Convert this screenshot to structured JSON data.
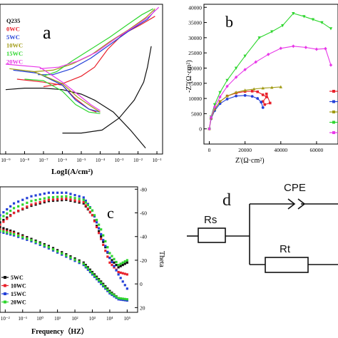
{
  "colors": {
    "black": "#111111",
    "red": "#e8202a",
    "blue": "#2440d8",
    "olive": "#a09a12",
    "green": "#2ed62e",
    "magenta": "#e838e8"
  },
  "chart_data": [
    {
      "panel": "a",
      "type": "line",
      "xlabel": "LogI(A/cm²)",
      "ylabel": "",
      "x_ticks": [
        "10⁻⁹",
        "10⁻⁸",
        "10⁻⁷",
        "10⁻⁶",
        "10⁻⁵",
        "10⁻⁴",
        "10⁻³",
        "10⁻²",
        "10⁻¹"
      ],
      "xlim": [
        -9.3,
        -0.7
      ],
      "legend": [
        "Q235",
        "0WC",
        "5WC",
        "10WC",
        "15WC",
        "20WC"
      ],
      "legend_position": "top-left",
      "series": [
        {
          "name": "Q235",
          "x": [
            -6.0,
            -5.0,
            -3.9,
            -3.0,
            -2.2,
            -1.7,
            -1.5,
            -1.3
          ],
          "y": [
            0.14,
            0.14,
            0.16,
            0.24,
            0.36,
            0.48,
            0.58,
            0.72
          ],
          "x2": [
            -9.0,
            -8.0,
            -7.0,
            -6.0,
            -5.0,
            -4.3,
            -3.3,
            -2.4,
            -1.6
          ],
          "y2": [
            0.43,
            0.44,
            0.44,
            0.43,
            0.4,
            0.36,
            0.28,
            0.16,
            0.04
          ]
        },
        {
          "name": "0WC",
          "x": [
            -7.0,
            -6.0,
            -5.0,
            -4.3,
            -3.6,
            -2.8,
            -1.9,
            -1.1
          ],
          "y": [
            0.45,
            0.47,
            0.52,
            0.58,
            0.7,
            0.8,
            0.86,
            0.92
          ],
          "x2": [
            -8.4,
            -7.0,
            -6.0,
            -5.4,
            -4.6,
            -4.2
          ],
          "y2": [
            0.5,
            0.48,
            0.46,
            0.38,
            0.3,
            0.28
          ]
        },
        {
          "name": "5WC",
          "x": [
            -7.3,
            -6.5,
            -5.5,
            -4.5,
            -3.5,
            -2.5,
            -1.5,
            -1.1
          ],
          "y": [
            0.53,
            0.53,
            0.57,
            0.64,
            0.73,
            0.82,
            0.9,
            0.96
          ],
          "x2": [
            -8.6,
            -7.3,
            -6.0,
            -5.3,
            -4.6,
            -4.0
          ],
          "y2": [
            0.56,
            0.54,
            0.46,
            0.36,
            0.3,
            0.28
          ]
        },
        {
          "name": "10WC",
          "x": [
            -7.5,
            -6.5,
            -5.5,
            -4.5,
            -3.5,
            -2.5,
            -1.6,
            -1.1
          ],
          "y": [
            0.55,
            0.56,
            0.6,
            0.66,
            0.75,
            0.83,
            0.91,
            0.97
          ],
          "x2": [
            -8.8,
            -7.5,
            -6.0,
            -5.2,
            -4.5,
            -4.0
          ],
          "y2": [
            0.57,
            0.55,
            0.47,
            0.38,
            0.32,
            0.28
          ]
        },
        {
          "name": "15WC",
          "x": [
            -7.0,
            -6.3,
            -5.5,
            -4.5,
            -3.5,
            -2.6,
            -1.8,
            -1.2
          ],
          "y": [
            0.52,
            0.55,
            0.62,
            0.7,
            0.78,
            0.86,
            0.93,
            0.97
          ],
          "x2": [
            -8.0,
            -7.0,
            -6.0,
            -5.3,
            -4.6,
            -4.0
          ],
          "y2": [
            0.5,
            0.49,
            0.42,
            0.33,
            0.28,
            0.27
          ]
        },
        {
          "name": "20WC",
          "x": [
            -7.2,
            -6.2,
            -5.2,
            -4.2,
            -3.2,
            -2.2,
            -1.4,
            -0.9
          ],
          "y": [
            0.57,
            0.58,
            0.62,
            0.68,
            0.77,
            0.85,
            0.92,
            0.98
          ],
          "x2": [
            -9.0,
            -7.2,
            -6.0,
            -5.2,
            -4.5,
            -4.0
          ],
          "y2": [
            0.6,
            0.58,
            0.48,
            0.4,
            0.33,
            0.29
          ]
        }
      ]
    },
    {
      "panel": "b",
      "type": "scatter",
      "xlabel": "Z'(Ω·cm²)",
      "ylabel": "-Z''(Ω·cm²)",
      "x_ticks": [
        0,
        20000,
        40000,
        60000
      ],
      "y_ticks": [
        0,
        5000,
        10000,
        15000,
        20000,
        25000,
        30000,
        35000,
        40000
      ],
      "xlim": [
        -3000,
        72000
      ],
      "ylim": [
        -5000,
        41000
      ],
      "series": [
        {
          "color_key": "red",
          "x": [
            0,
            1000,
            3000,
            6000,
            10000,
            15000,
            20000,
            24000,
            27000,
            30000,
            32000,
            30000,
            31000,
            34000,
            32000
          ],
          "y": [
            0,
            3500,
            6500,
            9000,
            10800,
            11800,
            12300,
            12400,
            12200,
            11200,
            10500,
            9000,
            8000,
            8500,
            11500
          ]
        },
        {
          "color_key": "blue",
          "x": [
            0,
            1000,
            3000,
            6000,
            10000,
            15000,
            20000,
            24000,
            27000,
            29000,
            30000
          ],
          "y": [
            0,
            3300,
            6000,
            8300,
            9800,
            10800,
            11000,
            10700,
            10000,
            8800,
            7000
          ]
        },
        {
          "color_key": "olive",
          "x": [
            0,
            1000,
            3000,
            6000,
            10000,
            15000,
            20000,
            25000,
            30000,
            35000,
            40000
          ],
          "y": [
            0,
            3500,
            6500,
            9000,
            10800,
            12000,
            12700,
            13100,
            13400,
            13600,
            13800
          ]
        },
        {
          "color_key": "green",
          "x": [
            0,
            1000,
            3000,
            6000,
            10000,
            15000,
            20000,
            28000,
            35000,
            41000,
            47000,
            53000,
            58000,
            63000,
            68000
          ],
          "y": [
            0,
            4000,
            8000,
            12000,
            16000,
            20000,
            24000,
            30000,
            32000,
            34000,
            38000,
            37000,
            36000,
            35000,
            33000
          ]
        },
        {
          "color_key": "magenta",
          "x": [
            0,
            1000,
            3000,
            6000,
            10000,
            15000,
            20000,
            26000,
            33000,
            40000,
            47000,
            54000,
            60000,
            65000,
            68000
          ],
          "y": [
            0,
            3800,
            7200,
            10500,
            14000,
            17000,
            19500,
            22000,
            24500,
            26500,
            27200,
            26800,
            26200,
            26400,
            21000
          ]
        }
      ]
    },
    {
      "panel": "c",
      "type": "scatter",
      "xlabel": "Frequency（HZ）",
      "ylabel_right": "Theta",
      "x_ticks": [
        "10⁻²",
        "10⁻¹",
        "10⁰",
        "10¹",
        "10²",
        "10³",
        "10⁴",
        "10⁵"
      ],
      "y_right_ticks": [
        -80,
        -60,
        -40,
        -20,
        0,
        20
      ],
      "xlim": [
        -2.3,
        5.6
      ],
      "ylim_right": [
        -82,
        24
      ],
      "legend": [
        "5WC",
        "10WC",
        "15WC",
        "20WC"
      ],
      "legend_position": "bottom-left",
      "series": [
        {
          "name": "5WC",
          "color_key": "black",
          "x": [
            -2.3,
            -1.5,
            -0.5,
            0.5,
            1.5,
            2.5,
            3.0,
            3.5,
            4.0,
            4.5,
            5.0
          ],
          "y_phase": [
            -52,
            -60,
            -66,
            -70,
            -71,
            -68,
            -58,
            -40,
            -22,
            -14,
            -18
          ],
          "y_mod": [
            -48,
            -44,
            -38,
            -32,
            -25,
            -18,
            -10,
            -2,
            6,
            12,
            14
          ]
        },
        {
          "name": "10WC",
          "color_key": "red",
          "x": [
            -2.3,
            -1.5,
            -0.5,
            0.5,
            1.5,
            2.5,
            3.0,
            3.5,
            4.0,
            4.5,
            5.0
          ],
          "y_phase": [
            -50,
            -60,
            -67,
            -71,
            -72,
            -69,
            -58,
            -38,
            -18,
            -10,
            -8
          ],
          "y_mod": [
            -46,
            -43,
            -37,
            -31,
            -24,
            -17,
            -9,
            -1,
            7,
            12,
            14
          ]
        },
        {
          "name": "15WC",
          "color_key": "blue",
          "x": [
            -2.3,
            -1.5,
            -0.5,
            0.5,
            1.5,
            2.5,
            3.0,
            3.5,
            4.0,
            4.5,
            5.0
          ],
          "y_phase": [
            -58,
            -68,
            -74,
            -77,
            -77,
            -73,
            -62,
            -42,
            -22,
            -8,
            4
          ],
          "y_mod": [
            -44,
            -41,
            -36,
            -30,
            -23,
            -16,
            -8,
            0,
            8,
            13,
            14
          ]
        },
        {
          "name": "20WC",
          "color_key": "green",
          "x": [
            -2.3,
            -1.5,
            -0.5,
            0.5,
            1.5,
            2.5,
            3.0,
            3.5,
            4.0,
            4.5,
            5.0
          ],
          "y_phase": [
            -55,
            -64,
            -70,
            -73,
            -74,
            -71,
            -62,
            -46,
            -26,
            -16,
            -20
          ],
          "y_mod": [
            -45,
            -42,
            -37,
            -31,
            -24,
            -17,
            -9,
            -1,
            7,
            12,
            13
          ]
        }
      ]
    }
  ],
  "panel_letters": {
    "a": "a",
    "b": "b",
    "c": "c",
    "d": "d"
  },
  "circuit": {
    "cpe_label": "CPE",
    "rs_label": "Rs",
    "rt_label": "Rt"
  }
}
